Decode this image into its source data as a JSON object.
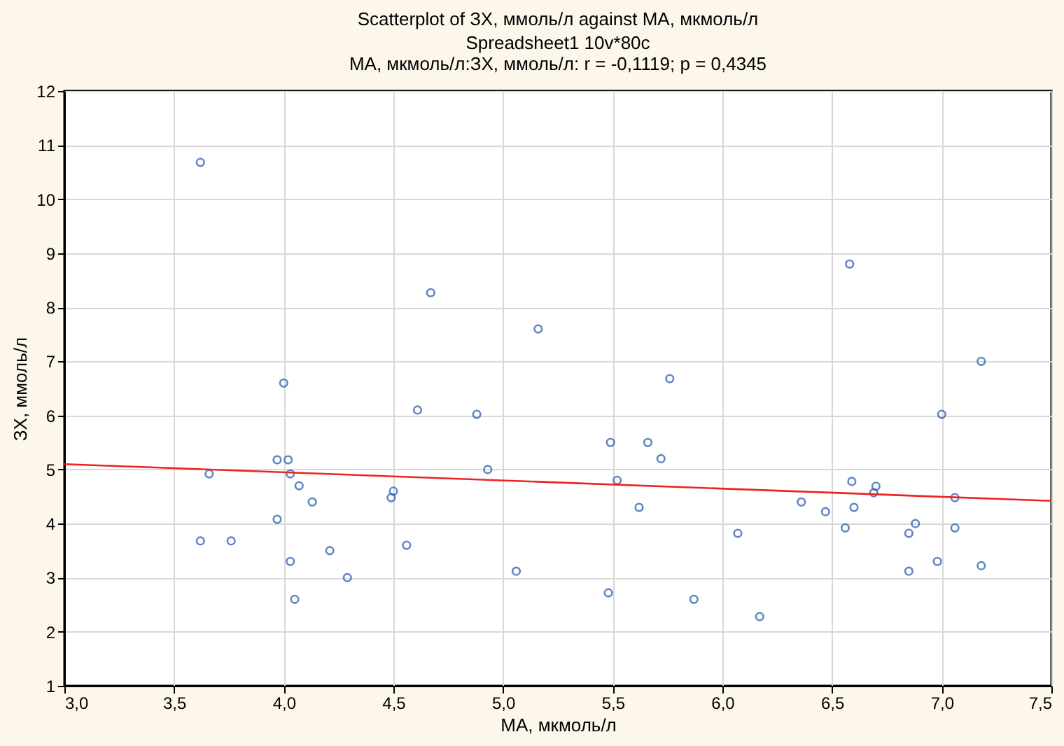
{
  "chart_data": {
    "type": "scatter",
    "title": "Scatterplot of ЗХ, ммоль/л against МА, мкмоль/л",
    "subtitle": "Spreadsheet1 10v*80c",
    "annotations": [
      "МА, мкмоль/л:ЗХ, ммоль/л:   r = -0,1119; p = 0,4345"
    ],
    "xlabel": "МА, мкмоль/л",
    "ylabel": "ЗХ, ммоль/л",
    "xlim": [
      3.0,
      7.5
    ],
    "ylim": [
      1,
      12
    ],
    "xticks": [
      {
        "value": 3.0,
        "label": "3,0"
      },
      {
        "value": 3.5,
        "label": "3,5"
      },
      {
        "value": 4.0,
        "label": "4,0"
      },
      {
        "value": 4.5,
        "label": "4,5"
      },
      {
        "value": 5.0,
        "label": "5,0"
      },
      {
        "value": 5.5,
        "label": "5,5"
      },
      {
        "value": 6.0,
        "label": "6,0"
      },
      {
        "value": 6.5,
        "label": "6,5"
      },
      {
        "value": 7.0,
        "label": "7,0"
      },
      {
        "value": 7.5,
        "label": "7,5"
      }
    ],
    "yticks": [
      1,
      2,
      3,
      4,
      5,
      6,
      7,
      8,
      9,
      10,
      11,
      12
    ],
    "grid": true,
    "series": [
      {
        "color": "#2255aa",
        "marker": "circle",
        "x": [
          3.62,
          3.66,
          3.62,
          3.76,
          3.97,
          4.02,
          4.0,
          4.03,
          3.97,
          4.07,
          4.13,
          4.03,
          4.05,
          4.21,
          4.29,
          4.49,
          4.5,
          4.56,
          4.61,
          4.67,
          4.88,
          4.93,
          5.06,
          5.16,
          5.48,
          5.49,
          5.52,
          5.62,
          5.66,
          5.72,
          5.76,
          5.87,
          6.07,
          6.17,
          6.36,
          6.47,
          6.56,
          6.58,
          6.59,
          6.6,
          6.69,
          6.7,
          6.85,
          6.85,
          6.88,
          6.98,
          7.0,
          7.06,
          7.06,
          7.18,
          7.18
        ],
        "values": [
          10.68,
          4.92,
          3.68,
          3.68,
          5.18,
          5.18,
          6.6,
          4.92,
          4.08,
          4.7,
          4.4,
          3.3,
          2.6,
          3.5,
          3.0,
          4.48,
          4.6,
          3.6,
          6.1,
          8.27,
          6.02,
          5.0,
          3.12,
          7.6,
          2.72,
          5.5,
          4.8,
          4.3,
          5.5,
          5.2,
          6.68,
          2.6,
          3.82,
          2.28,
          4.4,
          4.22,
          3.92,
          8.8,
          4.78,
          4.3,
          4.57,
          4.69,
          3.82,
          3.12,
          4.0,
          3.3,
          6.02,
          4.48,
          3.92,
          7.0,
          3.22
        ]
      },
      {
        "type": "line",
        "color": "#ee2222",
        "line_style": "solid",
        "x": [
          3.0,
          7.5
        ],
        "values": [
          5.1,
          4.42
        ]
      }
    ]
  }
}
